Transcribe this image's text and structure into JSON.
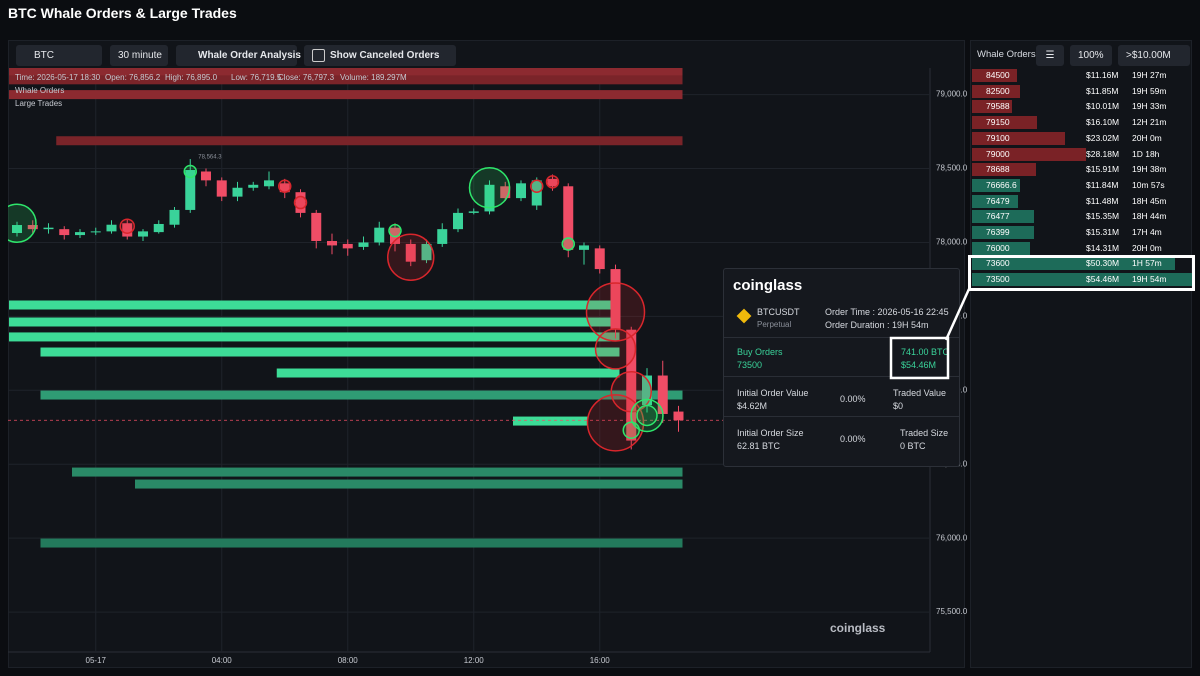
{
  "header": {
    "title": "BTC Whale Orders & Large Trades"
  },
  "toolbar": {
    "symbol": "BTC",
    "interval": "30 minute",
    "analysis": "Whale Order Analysis",
    "canceled": "Show Canceled Orders"
  },
  "chart_data": {
    "type": "candlestick",
    "info": [
      "Time: 2026-05-17 18:30",
      "Open: 76,856.2",
      "High: 76,895.0",
      "Low: 76,719.5",
      "Close: 76,797.3",
      "Volume: 189.297M"
    ],
    "layers": [
      "Whale Orders",
      "Large Trades"
    ],
    "categories": [
      null,
      null,
      null,
      null,
      null,
      "05-17",
      null,
      null,
      null,
      null,
      null,
      null,
      null,
      "04:00",
      null,
      null,
      null,
      null,
      null,
      null,
      null,
      "08:00",
      null,
      null,
      null,
      null,
      null,
      null,
      null,
      "12:00",
      null,
      null,
      null,
      null,
      null,
      null,
      null,
      "16:00",
      null,
      null,
      null,
      null,
      null
    ],
    "open": [
      78064,
      78118,
      78090,
      78090,
      78050,
      78070,
      78075,
      78130,
      78040,
      78070,
      78120,
      78220,
      78480,
      78420,
      78310,
      78370,
      78380,
      78400,
      78340,
      78200,
      78010,
      77990,
      77970,
      78000,
      78100,
      77990,
      77880,
      77990,
      78090,
      78200,
      78210,
      78380,
      78300,
      78250,
      78430,
      78380,
      77950,
      77960,
      77820,
      77410,
      76900,
      77100,
      76856.2
    ],
    "high": [
      78140,
      78150,
      78130,
      78110,
      78090,
      78100,
      78150,
      78160,
      78090,
      78150,
      78240,
      78564.3,
      78500,
      78440,
      78410,
      78410,
      78480,
      78430,
      78360,
      78220,
      78060,
      78020,
      78040,
      78140,
      78130,
      78020,
      78020,
      78130,
      78230,
      78230,
      78420,
      78410,
      78420,
      78440,
      78460,
      78400,
      78000,
      77980,
      77850,
      77430,
      77150,
      77200,
      76895
    ],
    "low": [
      78040,
      78060,
      78060,
      78020,
      78030,
      78050,
      78060,
      78020,
      78010,
      78060,
      78100,
      78200,
      78380,
      78280,
      78280,
      78350,
      78360,
      78300,
      78170,
      77960,
      77920,
      77910,
      77950,
      77980,
      77940,
      77840,
      77860,
      77970,
      78070,
      78190,
      78190,
      78280,
      78280,
      78220,
      78350,
      77900,
      77850,
      77790,
      77350,
      76600,
      76850,
      76780,
      76719.5
    ],
    "close": [
      78118,
      78090,
      78100,
      78050,
      78070,
      78075,
      78120,
      78040,
      78075,
      78125,
      78220,
      78490,
      78420,
      78310,
      78370,
      78390,
      78420,
      78340,
      78200,
      78010,
      77980,
      77960,
      78000,
      78100,
      77990,
      77870,
      77990,
      78090,
      78200,
      78210,
      78390,
      78300,
      78400,
      78420,
      78380,
      77950,
      77980,
      77820,
      77410,
      76660,
      77100,
      76840,
      76797.3
    ],
    "high_label": "78,564.3",
    "up_color": "#3ad39a",
    "down_color": "#f04d66",
    "ylim": [
      75230,
      79180
    ],
    "yticks": [
      {
        "value": 79000,
        "label": "79,000.0"
      },
      {
        "value": 78500,
        "label": "78,500.0"
      },
      {
        "value": 78000,
        "label": "78,000.0"
      },
      {
        "value": 77500,
        "label": "77,500.0"
      },
      {
        "value": 77000,
        "label": "77,000.0"
      },
      {
        "value": 76500,
        "label": "76,500.0"
      },
      {
        "value": 76000,
        "label": "76,000.0"
      },
      {
        "value": 75500,
        "label": "75,500.0"
      }
    ],
    "grid": true,
    "whale_orders": [
      {
        "price": 79150,
        "start": 0,
        "end": 42,
        "color": "#8c2a30"
      },
      {
        "price": 79100,
        "start": 0,
        "end": 42,
        "color": "#7a2429"
      },
      {
        "price": 79000,
        "start": 0,
        "end": 42,
        "color": "#8c2a30"
      },
      {
        "price": 78688,
        "start": 3,
        "end": 42,
        "color": "#7a2429"
      },
      {
        "price": 77577,
        "start": 0,
        "end": 38,
        "color": "#3ddc97"
      },
      {
        "price": 77462,
        "start": 0,
        "end": 38,
        "color": "#3ddc97"
      },
      {
        "price": 77361,
        "start": 0,
        "end": 38,
        "color": "#3ddc97"
      },
      {
        "price": 77259,
        "start": 2,
        "end": 38,
        "color": "#3ddc97"
      },
      {
        "price": 77117,
        "start": 17,
        "end": 38,
        "color": "#3ddc97"
      },
      {
        "price": 76968,
        "start": 2,
        "end": 42,
        "color": "#2f9c74"
      },
      {
        "price": 76792,
        "start": 32,
        "end": 36,
        "color": "#3ddc97"
      },
      {
        "price": 76447,
        "start": 4,
        "end": 42,
        "color": "#2a8a67"
      },
      {
        "price": 76366,
        "start": 8,
        "end": 42,
        "color": "#2a8a67"
      },
      {
        "price": 75967,
        "start": 2,
        "end": 42,
        "color": "#237a5c"
      }
    ],
    "large_trades": [
      {
        "index": 0,
        "price": 78130,
        "size": 19,
        "color": "#2ee66b"
      },
      {
        "index": 7,
        "price": 78110,
        "size": 7,
        "color": "#d9262c"
      },
      {
        "index": 11,
        "price": 78480,
        "size": 6,
        "color": "#2ee66b"
      },
      {
        "index": 17,
        "price": 78380,
        "size": 6,
        "color": "#d9262c"
      },
      {
        "index": 18,
        "price": 78270,
        "size": 6,
        "color": "#d9262c"
      },
      {
        "index": 24,
        "price": 78080,
        "size": 6,
        "color": "#2ee66b"
      },
      {
        "index": 25,
        "price": 77900,
        "size": 23,
        "color": "#d9262c"
      },
      {
        "index": 30,
        "price": 78370,
        "size": 20,
        "color": "#2ee66b"
      },
      {
        "index": 33,
        "price": 78380,
        "size": 6,
        "color": "#d9262c"
      },
      {
        "index": 34,
        "price": 78410,
        "size": 6,
        "color": "#d9262c"
      },
      {
        "index": 35,
        "price": 77990,
        "size": 6,
        "color": "#2ee66b"
      },
      {
        "index": 38,
        "price": 77530,
        "size": 29,
        "color": "#d9262c"
      },
      {
        "index": 38,
        "price": 77280,
        "size": 20,
        "color": "#d9262c"
      },
      {
        "index": 39,
        "price": 76990,
        "size": 20,
        "color": "#d9262c"
      },
      {
        "index": 38,
        "price": 76780,
        "size": 28,
        "color": "#d9262c"
      },
      {
        "index": 40,
        "price": 76830,
        "size": 16,
        "color": "#2ee66b"
      },
      {
        "index": 40,
        "price": 76830,
        "size": 10,
        "color": "#2ee66b"
      },
      {
        "index": 39,
        "price": 76730,
        "size": 8,
        "color": "#2ee66b"
      }
    ]
  },
  "order_book": {
    "title": "Whale Orders",
    "zoom": "100%",
    "filter": ">$10.00M",
    "colors": {
      "sell": "#7a2226",
      "buy": "#1d6b59"
    },
    "rows": [
      {
        "price": 84500,
        "value": 11160000,
        "value_label": "$11.16M",
        "duration": "19H 27m",
        "side": "sell"
      },
      {
        "price": 82500,
        "value": 11850000,
        "value_label": "$11.85M",
        "duration": "19H 59m",
        "side": "sell"
      },
      {
        "price": 79588,
        "value": 10010000,
        "value_label": "$10.01M",
        "duration": "19H 33m",
        "side": "sell"
      },
      {
        "price": 79150,
        "value": 16100000,
        "value_label": "$16.10M",
        "duration": "12H 21m",
        "side": "sell"
      },
      {
        "price": 79100,
        "value": 23020000,
        "value_label": "$23.02M",
        "duration": "20H 0m",
        "side": "sell"
      },
      {
        "price": 79000,
        "value": 28180000,
        "value_label": "$28.18M",
        "duration": "1D 18h",
        "side": "sell"
      },
      {
        "price": 78688,
        "value": 15910000,
        "value_label": "$15.91M",
        "duration": "19H 38m",
        "side": "sell"
      },
      {
        "price": 76666.6,
        "value": 11840000,
        "value_label": "$11.84M",
        "duration": "10m 57s",
        "side": "buy"
      },
      {
        "price": 76479,
        "value": 11480000,
        "value_label": "$11.48M",
        "duration": "18H 45m",
        "side": "buy"
      },
      {
        "price": 76477,
        "value": 15350000,
        "value_label": "$15.35M",
        "duration": "18H 44m",
        "side": "buy"
      },
      {
        "price": 76399,
        "value": 15310000,
        "value_label": "$15.31M",
        "duration": "17H 4m",
        "side": "buy"
      },
      {
        "price": 76000,
        "value": 14310000,
        "value_label": "$14.31M",
        "duration": "20H 0m",
        "side": "buy"
      },
      {
        "price": 73600,
        "value": 50300000,
        "value_label": "$50.30M",
        "duration": "1H 57m",
        "side": "buy"
      },
      {
        "price": 73500,
        "value": 54460000,
        "value_label": "$54.46M",
        "duration": "19H 54m",
        "side": "buy"
      }
    ]
  },
  "tooltip": {
    "brand": "coinglass",
    "symbol": "BTCUSDT",
    "contract": "Perpetual",
    "order_time": "Order Time : 2026-05-16 22:45",
    "order_duration": "Order Duration : 19H 54m",
    "side": "Buy Orders",
    "price": "73500",
    "size": "741.00 BTC",
    "value": "$54.46M",
    "initial_value_label": "Initial Order Value",
    "initial_value": "$4.62M",
    "value_pct": "0.00%",
    "traded_value_label": "Traded Value",
    "traded_value": "$0",
    "initial_size_label": "Initial Order Size",
    "initial_size": "62.81 BTC",
    "size_pct": "0.00%",
    "traded_size_label": "Traded Size",
    "traded_size": "0 BTC"
  },
  "watermark": "coinglass"
}
